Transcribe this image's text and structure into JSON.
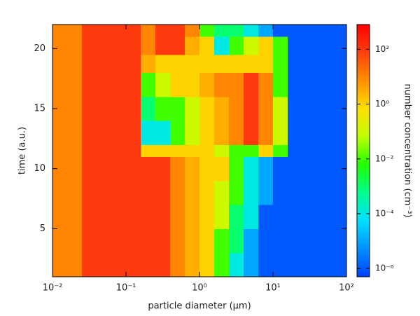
{
  "chart_data": {
    "type": "contour",
    "xlabel": "particle diameter (μm)",
    "ylabel": "time (a.u.)",
    "colorbar_label": "number concentration (cm⁻³)",
    "xscale": "log",
    "cscale": "log",
    "xlim": [
      0.01,
      100
    ],
    "ylim": [
      1,
      22
    ],
    "clim": [
      5e-07,
      800
    ],
    "xticks": [
      {
        "value": 0.01,
        "label": "10⁻²"
      },
      {
        "value": 0.1,
        "label": "10⁻¹"
      },
      {
        "value": 1,
        "label": "10⁰"
      },
      {
        "value": 10,
        "label": "10¹"
      },
      {
        "value": 100,
        "label": "10²"
      }
    ],
    "yticks": [
      5,
      10,
      15,
      20
    ],
    "cticks": [
      {
        "value": 1e-06,
        "label": "10⁻⁶"
      },
      {
        "value": 0.0001,
        "label": "10⁻⁴"
      },
      {
        "value": 0.01,
        "label": "10⁻²"
      },
      {
        "value": 1,
        "label": "10⁰"
      },
      {
        "value": 100,
        "label": "10²"
      }
    ],
    "colormap": [
      "#0040ff",
      "#0090ff",
      "#00e0ff",
      "#00ff90",
      "#20ff00",
      "#c0ff00",
      "#ffe000",
      "#ff9000",
      "#ff4010",
      "#ff0000"
    ],
    "x_edges": [
      0.01,
      0.0158,
      0.0251,
      0.0398,
      0.0631,
      0.1,
      0.158,
      0.251,
      0.398,
      0.631,
      1,
      1.58,
      2.51,
      3.98,
      6.31,
      10,
      15.8,
      25.1,
      39.8,
      63.1,
      100
    ],
    "y_edges": [
      1,
      3,
      5,
      7,
      9,
      11,
      12,
      14,
      16,
      18,
      19.5,
      21,
      22
    ],
    "z": [
      [
        10,
        10,
        100,
        100,
        100,
        100,
        100,
        100,
        10,
        3,
        1,
        0.01,
        0.0001,
        1e-05,
        1e-06,
        1e-06,
        1e-06,
        1e-06,
        1e-06,
        1e-06
      ],
      [
        10,
        10,
        100,
        100,
        100,
        100,
        100,
        100,
        10,
        3,
        1,
        0.01,
        0.001,
        1e-05,
        1e-06,
        1e-06,
        1e-06,
        1e-06,
        1e-06,
        1e-06
      ],
      [
        10,
        10,
        100,
        100,
        100,
        100,
        100,
        100,
        10,
        3,
        1,
        0.1,
        0.001,
        0.0001,
        1e-06,
        1e-06,
        1e-06,
        1e-06,
        1e-06,
        1e-06
      ],
      [
        10,
        10,
        100,
        100,
        100,
        100,
        100,
        100,
        10,
        3,
        1,
        0.1,
        0.01,
        0.0001,
        1e-05,
        1e-06,
        1e-06,
        1e-06,
        1e-06,
        1e-06
      ],
      [
        10,
        10,
        100,
        100,
        100,
        100,
        100,
        100,
        10,
        3,
        1,
        1,
        0.01,
        0.0001,
        1e-05,
        1e-06,
        1e-06,
        1e-06,
        1e-06,
        1e-06
      ],
      [
        10,
        10,
        100,
        100,
        100,
        100,
        1,
        1,
        1,
        1,
        1,
        0.1,
        0.01,
        0.01,
        1,
        0.01,
        1e-06,
        1e-06,
        1e-06,
        1e-06
      ],
      [
        10,
        10,
        100,
        100,
        100,
        100,
        0.0001,
        0.0001,
        0.01,
        0.1,
        1,
        3,
        10,
        100,
        10,
        0.1,
        1e-06,
        1e-06,
        1e-06,
        1e-06
      ],
      [
        10,
        10,
        100,
        100,
        100,
        100,
        0.001,
        0.01,
        0.01,
        0.1,
        1,
        3,
        10,
        100,
        10,
        0.1,
        1e-06,
        1e-06,
        1e-06,
        1e-06
      ],
      [
        10,
        10,
        100,
        100,
        100,
        100,
        0.01,
        0.1,
        1,
        1,
        3,
        10,
        10,
        100,
        10,
        0.01,
        1e-06,
        1e-06,
        1e-06,
        1e-06
      ],
      [
        10,
        10,
        100,
        100,
        100,
        100,
        3,
        1,
        1,
        1,
        1,
        1,
        1,
        1,
        1,
        0.01,
        1e-06,
        1e-06,
        1e-06,
        1e-06
      ],
      [
        10,
        10,
        100,
        100,
        100,
        100,
        10,
        100,
        100,
        3,
        1,
        0.0001,
        0.01,
        0.1,
        1,
        0.01,
        1e-06,
        1e-06,
        1e-06,
        1e-06
      ],
      [
        10,
        10,
        100,
        100,
        100,
        100,
        10,
        100,
        100,
        10,
        0.01,
        0.001,
        0.001,
        0.0001,
        1e-05,
        1e-06,
        1e-06,
        1e-06,
        1e-06,
        1e-06
      ]
    ]
  }
}
